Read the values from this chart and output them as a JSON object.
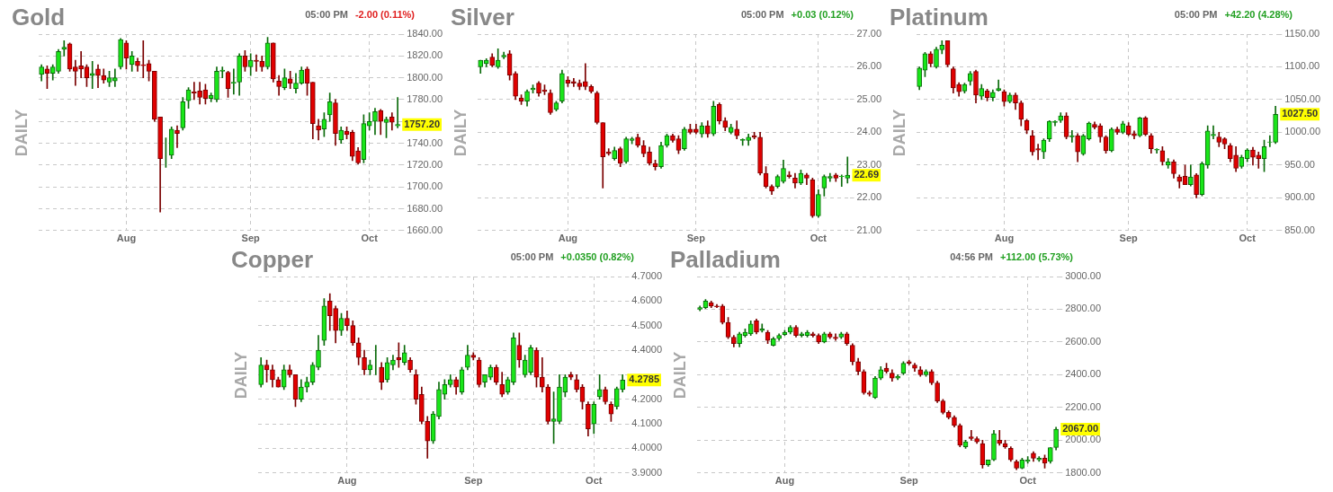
{
  "chart_data": [
    {
      "type": "candlestick",
      "title": "Gold",
      "subtitle": "05:00 PM",
      "ylabel": "DAILY",
      "grid": true,
      "categories": [
        null,
        null,
        null,
        null,
        null,
        null,
        null,
        null,
        null,
        null,
        null,
        null,
        null,
        null,
        null,
        "Aug",
        null,
        null,
        null,
        null,
        null,
        null,
        null,
        null,
        null,
        null,
        null,
        null,
        null,
        null,
        null,
        null,
        null,
        null,
        null,
        null,
        null,
        "Sep",
        null,
        null,
        null,
        null,
        null,
        null,
        null,
        null,
        null,
        null,
        null,
        null,
        null,
        null,
        null,
        null,
        null,
        null,
        null,
        null,
        "Oct",
        null,
        null,
        null,
        null,
        null
      ],
      "ohlc": [
        [
          1803,
          1812,
          1797,
          1810
        ],
        [
          1808,
          1811,
          1790,
          1804
        ],
        [
          1804,
          1812,
          1798,
          1810
        ],
        [
          1806,
          1826,
          1804,
          1824
        ],
        [
          1826,
          1834,
          1820,
          1828
        ],
        [
          1831,
          1832,
          1806,
          1808
        ],
        [
          1810,
          1816,
          1793,
          1806
        ],
        [
          1811,
          1824,
          1800,
          1808
        ],
        [
          1810,
          1812,
          1792,
          1800
        ],
        [
          1802,
          1815,
          1790,
          1804
        ],
        [
          1808,
          1812,
          1791,
          1802
        ],
        [
          1802,
          1808,
          1795,
          1798
        ],
        [
          1796,
          1806,
          1792,
          1800
        ],
        [
          1797,
          1808,
          1792,
          1800
        ],
        [
          1810,
          1836,
          1808,
          1835
        ],
        [
          1832,
          1834,
          1808,
          1818
        ],
        [
          1812,
          1824,
          1806,
          1820
        ],
        [
          1815,
          1818,
          1806,
          1811
        ],
        [
          1812,
          1834,
          1800,
          1811
        ],
        [
          1813,
          1816,
          1797,
          1806
        ],
        [
          1806,
          1806,
          1760,
          1762
        ],
        [
          1764,
          1764,
          1677,
          1726
        ],
        [
          1731,
          1745,
          1718,
          1731
        ],
        [
          1729,
          1755,
          1726,
          1753
        ],
        [
          1752,
          1756,
          1736,
          1749
        ],
        [
          1754,
          1782,
          1752,
          1778
        ],
        [
          1779,
          1791,
          1772,
          1789
        ],
        [
          1787,
          1796,
          1780,
          1786
        ],
        [
          1788,
          1796,
          1776,
          1782
        ],
        [
          1789,
          1794,
          1776,
          1781
        ],
        [
          1781,
          1786,
          1778,
          1784
        ],
        [
          1780,
          1810,
          1778,
          1806
        ],
        [
          1806,
          1810,
          1800,
          1807
        ],
        [
          1805,
          1806,
          1782,
          1790
        ],
        [
          1795,
          1808,
          1785,
          1796
        ],
        [
          1796,
          1822,
          1784,
          1820
        ],
        [
          1820,
          1825,
          1806,
          1810
        ],
        [
          1810,
          1822,
          1802,
          1816
        ],
        [
          1816,
          1821,
          1806,
          1815
        ],
        [
          1815,
          1820,
          1806,
          1810
        ],
        [
          1810,
          1837,
          1808,
          1832
        ],
        [
          1832,
          1832,
          1796,
          1799
        ],
        [
          1797,
          1802,
          1784,
          1792
        ],
        [
          1791,
          1808,
          1789,
          1800
        ],
        [
          1799,
          1806,
          1790,
          1795
        ],
        [
          1790,
          1804,
          1786,
          1795
        ],
        [
          1795,
          1810,
          1794,
          1807
        ],
        [
          1808,
          1810,
          1784,
          1795
        ],
        [
          1796,
          1796,
          1744,
          1758
        ],
        [
          1756,
          1762,
          1743,
          1752
        ],
        [
          1753,
          1768,
          1746,
          1762
        ],
        [
          1766,
          1786,
          1760,
          1778
        ],
        [
          1777,
          1780,
          1738,
          1749
        ],
        [
          1743,
          1755,
          1740,
          1752
        ],
        [
          1751,
          1755,
          1744,
          1748
        ],
        [
          1750,
          1752,
          1724,
          1728
        ],
        [
          1733,
          1736,
          1721,
          1722
        ],
        [
          1725,
          1766,
          1722,
          1758
        ],
        [
          1756,
          1768,
          1752,
          1760
        ],
        [
          1760,
          1772,
          1748,
          1769
        ],
        [
          1770,
          1771,
          1748,
          1760
        ],
        [
          1759,
          1764,
          1745,
          1762
        ],
        [
          1764,
          1768,
          1752,
          1759.2
        ],
        [
          1756,
          1782,
          1754,
          1757.2
        ]
      ],
      "ylim": [
        1660,
        1840
      ],
      "yticks": [
        {
          "value": 1660,
          "label": "1660.00"
        },
        {
          "value": 1680,
          "label": "1680.00"
        },
        {
          "value": 1700,
          "label": "1700.00"
        },
        {
          "value": 1720,
          "label": "1720.00"
        },
        {
          "value": 1740,
          "label": "1740.00"
        },
        {
          "value": 1760,
          "label": null
        },
        {
          "value": 1780,
          "label": "1780.00"
        },
        {
          "value": 1800,
          "label": "1800.00"
        },
        {
          "value": 1820,
          "label": "1820.00"
        },
        {
          "value": 1840,
          "label": "1840.00"
        }
      ],
      "annotations": [
        "-2.00 (0.11%)",
        {
          "text": "1757.20",
          "y": 1757.2
        }
      ]
    },
    {
      "type": "candlestick",
      "title": "Silver",
      "subtitle": "05:00 PM",
      "ylabel": "DAILY",
      "grid": true,
      "categories": [
        null,
        null,
        null,
        null,
        null,
        null,
        null,
        null,
        null,
        null,
        null,
        null,
        null,
        null,
        null,
        "Aug",
        null,
        null,
        null,
        null,
        null,
        null,
        null,
        null,
        null,
        null,
        null,
        null,
        null,
        null,
        null,
        null,
        null,
        null,
        null,
        null,
        null,
        "Sep",
        null,
        null,
        null,
        null,
        null,
        null,
        null,
        null,
        null,
        null,
        null,
        null,
        null,
        null,
        null,
        null,
        null,
        null,
        null,
        null,
        "Oct",
        null,
        null,
        null,
        null,
        null
      ],
      "ohlc": [
        [
          26.0,
          26.2,
          25.8,
          26.2
        ],
        [
          26.1,
          26.25,
          26.0,
          26.2
        ],
        [
          26.3,
          26.4,
          26.0,
          26.05
        ],
        [
          26.0,
          26.55,
          25.95,
          26.2
        ],
        [
          26.3,
          26.45,
          26.25,
          26.35
        ],
        [
          26.4,
          26.5,
          25.6,
          25.75
        ],
        [
          25.8,
          25.85,
          25.0,
          25.1
        ],
        [
          25.05,
          25.15,
          24.85,
          24.95
        ],
        [
          24.95,
          25.3,
          24.8,
          25.25
        ],
        [
          25.3,
          25.45,
          25.2,
          25.35
        ],
        [
          25.5,
          25.55,
          25.1,
          25.2
        ],
        [
          25.3,
          25.45,
          25.15,
          25.25
        ],
        [
          25.2,
          25.3,
          24.55,
          24.6
        ],
        [
          24.7,
          24.95,
          24.65,
          24.9
        ],
        [
          24.95,
          25.9,
          24.9,
          25.8
        ],
        [
          25.6,
          25.7,
          25.4,
          25.5
        ],
        [
          25.55,
          25.65,
          25.4,
          25.5
        ],
        [
          25.5,
          25.6,
          25.3,
          25.4
        ],
        [
          25.55,
          26.1,
          25.3,
          25.4
        ],
        [
          25.4,
          25.45,
          25.2,
          25.25
        ],
        [
          25.2,
          25.25,
          24.25,
          24.3
        ],
        [
          24.3,
          24.3,
          22.3,
          23.25
        ],
        [
          23.4,
          23.5,
          23.3,
          23.35
        ],
        [
          23.2,
          23.55,
          23.15,
          23.45
        ],
        [
          23.5,
          23.55,
          22.95,
          23.05
        ],
        [
          23.1,
          23.85,
          23.05,
          23.8
        ],
        [
          23.75,
          23.85,
          23.65,
          23.8
        ],
        [
          23.85,
          23.95,
          23.55,
          23.6
        ],
        [
          23.6,
          23.75,
          23.25,
          23.35
        ],
        [
          23.4,
          23.55,
          23.0,
          23.05
        ],
        [
          23.05,
          23.15,
          22.85,
          22.95
        ],
        [
          22.95,
          23.7,
          22.9,
          23.6
        ],
        [
          23.6,
          23.95,
          23.55,
          23.9
        ],
        [
          23.9,
          23.95,
          23.7,
          23.75
        ],
        [
          23.8,
          23.9,
          23.35,
          23.45
        ],
        [
          23.5,
          24.15,
          23.45,
          24.1
        ],
        [
          24.1,
          24.25,
          23.95,
          24.0
        ],
        [
          24.1,
          24.25,
          23.95,
          24.0
        ],
        [
          23.95,
          24.3,
          23.85,
          24.2
        ],
        [
          24.2,
          24.35,
          23.85,
          23.95
        ],
        [
          23.95,
          24.95,
          23.9,
          24.8
        ],
        [
          24.85,
          24.9,
          24.25,
          24.35
        ],
        [
          24.35,
          24.45,
          24.05,
          24.15
        ],
        [
          24.0,
          24.25,
          23.95,
          24.15
        ],
        [
          24.1,
          24.35,
          23.8,
          23.9
        ],
        [
          23.75,
          23.8,
          23.6,
          23.78
        ],
        [
          23.75,
          23.95,
          23.6,
          23.85
        ],
        [
          23.9,
          24.0,
          23.8,
          23.85
        ],
        [
          23.85,
          24.0,
          22.7,
          22.75
        ],
        [
          22.75,
          22.95,
          22.3,
          22.35
        ],
        [
          22.35,
          22.4,
          22.1,
          22.2
        ],
        [
          22.35,
          22.7,
          22.3,
          22.65
        ],
        [
          22.5,
          23.15,
          22.45,
          22.9
        ],
        [
          22.7,
          22.8,
          22.6,
          22.65
        ],
        [
          22.6,
          22.75,
          22.3,
          22.45
        ],
        [
          22.45,
          22.85,
          22.4,
          22.75
        ],
        [
          22.7,
          22.75,
          22.4,
          22.6
        ],
        [
          22.55,
          22.6,
          21.4,
          21.45
        ],
        [
          21.45,
          22.25,
          21.4,
          22.1
        ],
        [
          22.3,
          22.7,
          22.05,
          22.65
        ],
        [
          22.6,
          22.75,
          22.5,
          22.65
        ],
        [
          22.7,
          22.75,
          22.5,
          22.6
        ],
        [
          22.65,
          22.7,
          22.35,
          22.66
        ],
        [
          22.6,
          23.25,
          22.45,
          22.69
        ]
      ],
      "ylim": [
        21,
        27
      ],
      "yticks": [
        {
          "value": 21,
          "label": "21.00"
        },
        {
          "value": 22,
          "label": "22.00"
        },
        {
          "value": 23,
          "label": "23.00"
        },
        {
          "value": 24,
          "label": "24.00"
        },
        {
          "value": 25,
          "label": "25.00"
        },
        {
          "value": 26,
          "label": "26.00"
        },
        {
          "value": 27,
          "label": "27.00"
        }
      ],
      "annotations": [
        "+0.03 (0.12%)",
        {
          "text": "22.69",
          "y": 22.69
        }
      ]
    },
    {
      "type": "candlestick",
      "title": "Platinum",
      "subtitle": "05:00 PM",
      "ylabel": "DAILY",
      "grid": true,
      "categories": [
        null,
        null,
        null,
        null,
        null,
        null,
        null,
        null,
        null,
        null,
        null,
        null,
        null,
        null,
        null,
        "Aug",
        null,
        null,
        null,
        null,
        null,
        null,
        null,
        null,
        null,
        null,
        null,
        null,
        null,
        null,
        null,
        null,
        null,
        null,
        null,
        null,
        null,
        "Sep",
        null,
        null,
        null,
        null,
        null,
        null,
        null,
        null,
        null,
        null,
        null,
        null,
        null,
        null,
        null,
        null,
        null,
        null,
        null,
        null,
        "Oct",
        null,
        null,
        null,
        null,
        null
      ],
      "ohlc": [
        [
          1070,
          1100,
          1065,
          1098
        ],
        [
          1095,
          1122,
          1085,
          1120
        ],
        [
          1120,
          1123,
          1100,
          1105
        ],
        [
          1100,
          1130,
          1098,
          1127
        ],
        [
          1126,
          1140,
          1120,
          1133
        ],
        [
          1140,
          1140,
          1100,
          1103
        ],
        [
          1097,
          1100,
          1060,
          1068
        ],
        [
          1073,
          1076,
          1055,
          1062
        ],
        [
          1063,
          1075,
          1060,
          1073
        ],
        [
          1078,
          1093,
          1072,
          1090
        ],
        [
          1093,
          1095,
          1045,
          1057
        ],
        [
          1055,
          1073,
          1050,
          1067
        ],
        [
          1063,
          1066,
          1048,
          1053
        ],
        [
          1053,
          1065,
          1048,
          1061
        ],
        [
          1064,
          1080,
          1063,
          1067
        ],
        [
          1062,
          1065,
          1040,
          1047
        ],
        [
          1047,
          1060,
          1045,
          1057
        ],
        [
          1057,
          1060,
          1035,
          1045
        ],
        [
          1045,
          1048,
          1010,
          1020
        ],
        [
          1018,
          1020,
          998,
          1003
        ],
        [
          995,
          1003,
          965,
          970
        ],
        [
          975,
          982,
          958,
          973
        ],
        [
          970,
          990,
          960,
          988
        ],
        [
          990,
          1018,
          986,
          1017
        ],
        [
          1015,
          1018,
          1010,
          1017
        ],
        [
          1018,
          1030,
          1015,
          1025
        ],
        [
          1025,
          1030,
          990,
          993
        ],
        [
          993,
          1003,
          985,
          995
        ],
        [
          995,
          998,
          955,
          970
        ],
        [
          967,
          997,
          965,
          995
        ],
        [
          990,
          1016,
          988,
          1014
        ],
        [
          1012,
          1016,
          1005,
          1008
        ],
        [
          1010,
          1013,
          985,
          993
        ],
        [
          993,
          995,
          968,
          972
        ],
        [
          972,
          1007,
          970,
          1005
        ],
        [
          1005,
          1008,
          997,
          1000
        ],
        [
          1000,
          1017,
          998,
          1013
        ],
        [
          1010,
          1015,
          995,
          997
        ],
        [
          998,
          1002,
          990,
          995
        ],
        [
          995,
          1023,
          993,
          1022
        ],
        [
          1022,
          1024,
          995,
          997
        ],
        [
          995,
          998,
          968,
          975
        ],
        [
          973,
          975,
          968,
          974
        ],
        [
          972,
          978,
          950,
          955
        ],
        [
          950,
          960,
          945,
          955
        ],
        [
          955,
          958,
          930,
          937
        ],
        [
          932,
          935,
          915,
          925
        ],
        [
          933,
          950,
          920,
          920
        ],
        [
          920,
          950,
          918,
          932
        ],
        [
          935,
          937,
          900,
          905
        ],
        [
          905,
          955,
          903,
          952
        ],
        [
          950,
          1010,
          945,
          1002
        ],
        [
          995,
          1010,
          990,
          997
        ],
        [
          993,
          1000,
          978,
          985
        ],
        [
          990,
          992,
          975,
          982
        ],
        [
          980,
          983,
          955,
          960
        ],
        [
          965,
          978,
          940,
          945
        ],
        [
          948,
          965,
          945,
          962
        ],
        [
          960,
          975,
          955,
          973
        ],
        [
          973,
          977,
          950,
          962
        ],
        [
          965,
          970,
          945,
          960
        ],
        [
          960,
          988,
          940,
          978
        ],
        [
          985,
          995,
          978,
          985.3
        ],
        [
          985,
          1040,
          983,
          1027.5
        ]
      ],
      "ylim": [
        850,
        1150
      ],
      "yticks": [
        {
          "value": 850,
          "label": "850.00"
        },
        {
          "value": 900,
          "label": "900.00"
        },
        {
          "value": 950,
          "label": "950.00"
        },
        {
          "value": 1000,
          "label": "1000.00"
        },
        {
          "value": 1050,
          "label": "1050.00"
        },
        {
          "value": 1100,
          "label": "1100.00"
        },
        {
          "value": 1150,
          "label": "1150.00"
        }
      ],
      "annotations": [
        "+42.20 (4.28%)",
        {
          "text": "1027.50",
          "y": 1027.5
        }
      ]
    },
    {
      "type": "candlestick",
      "title": "Copper",
      "subtitle": "05:00 PM",
      "ylabel": "DAILY",
      "grid": true,
      "categories": [
        null,
        null,
        null,
        null,
        null,
        null,
        null,
        null,
        null,
        null,
        null,
        null,
        null,
        null,
        null,
        "Aug",
        null,
        null,
        null,
        null,
        null,
        null,
        null,
        null,
        null,
        null,
        null,
        null,
        null,
        null,
        null,
        null,
        null,
        null,
        null,
        null,
        null,
        "Sep",
        null,
        null,
        null,
        null,
        null,
        null,
        null,
        null,
        null,
        null,
        null,
        null,
        null,
        null,
        null,
        null,
        null,
        null,
        null,
        null,
        "Oct",
        null,
        null,
        null,
        null,
        null
      ],
      "ohlc": [
        [
          4.26,
          4.37,
          4.25,
          4.34
        ],
        [
          4.34,
          4.36,
          4.27,
          4.32
        ],
        [
          4.32,
          4.34,
          4.25,
          4.28
        ],
        [
          4.28,
          4.29,
          4.25,
          4.25
        ],
        [
          4.25,
          4.34,
          4.24,
          4.32
        ],
        [
          4.32,
          4.34,
          4.29,
          4.3
        ],
        [
          4.3,
          4.3,
          4.17,
          4.2
        ],
        [
          4.2,
          4.28,
          4.19,
          4.25
        ],
        [
          4.25,
          4.29,
          4.23,
          4.27
        ],
        [
          4.27,
          4.35,
          4.26,
          4.34
        ],
        [
          4.33,
          4.46,
          4.32,
          4.4
        ],
        [
          4.44,
          4.61,
          4.42,
          4.58
        ],
        [
          4.6,
          4.63,
          4.48,
          4.54
        ],
        [
          4.57,
          4.58,
          4.43,
          4.48
        ],
        [
          4.48,
          4.55,
          4.46,
          4.53
        ],
        [
          4.53,
          4.56,
          4.48,
          4.5
        ],
        [
          4.5,
          4.52,
          4.42,
          4.43
        ],
        [
          4.43,
          4.45,
          4.34,
          4.37
        ],
        [
          4.37,
          4.4,
          4.3,
          4.32
        ],
        [
          4.32,
          4.36,
          4.3,
          4.34
        ],
        [
          4.34,
          4.42,
          4.3,
          4.34
        ],
        [
          4.33,
          4.35,
          4.24,
          4.27
        ],
        [
          4.28,
          4.37,
          4.27,
          4.35
        ],
        [
          4.34,
          4.38,
          4.32,
          4.36
        ],
        [
          4.37,
          4.43,
          4.33,
          4.36
        ],
        [
          4.35,
          4.42,
          4.34,
          4.39
        ],
        [
          4.36,
          4.37,
          4.31,
          4.32
        ],
        [
          4.3,
          4.32,
          4.18,
          4.2
        ],
        [
          4.22,
          4.25,
          4.1,
          4.11
        ],
        [
          4.11,
          4.13,
          3.96,
          4.03
        ],
        [
          4.03,
          4.15,
          4.02,
          4.14
        ],
        [
          4.13,
          4.27,
          4.12,
          4.24
        ],
        [
          4.22,
          4.28,
          4.2,
          4.26
        ],
        [
          4.26,
          4.3,
          4.25,
          4.28
        ],
        [
          4.28,
          4.29,
          4.22,
          4.25
        ],
        [
          4.23,
          4.33,
          4.22,
          4.32
        ],
        [
          4.33,
          4.42,
          4.32,
          4.38
        ],
        [
          4.38,
          4.39,
          4.36,
          4.37
        ],
        [
          4.36,
          4.37,
          4.25,
          4.26
        ],
        [
          4.27,
          4.3,
          4.25,
          4.3
        ],
        [
          4.29,
          4.34,
          4.28,
          4.33
        ],
        [
          4.33,
          4.34,
          4.26,
          4.27
        ],
        [
          4.26,
          4.31,
          4.21,
          4.22
        ],
        [
          4.23,
          4.29,
          4.22,
          4.28
        ],
        [
          4.27,
          4.47,
          4.26,
          4.45
        ],
        [
          4.42,
          4.47,
          4.33,
          4.36
        ],
        [
          4.3,
          4.38,
          4.29,
          4.36
        ],
        [
          4.31,
          4.42,
          4.3,
          4.41
        ],
        [
          4.4,
          4.41,
          4.25,
          4.29
        ],
        [
          4.29,
          4.37,
          4.23,
          4.25
        ],
        [
          4.25,
          4.26,
          4.1,
          4.11
        ],
        [
          4.11,
          4.23,
          4.02,
          4.12
        ],
        [
          4.11,
          4.3,
          4.1,
          4.25
        ],
        [
          4.23,
          4.3,
          4.21,
          4.29
        ],
        [
          4.3,
          4.31,
          4.28,
          4.29
        ],
        [
          4.28,
          4.3,
          4.23,
          4.24
        ],
        [
          4.25,
          4.26,
          4.16,
          4.19
        ],
        [
          4.18,
          4.19,
          4.05,
          4.08
        ],
        [
          4.1,
          4.19,
          4.06,
          4.18
        ],
        [
          4.21,
          4.3,
          4.2,
          4.24
        ],
        [
          4.24,
          4.25,
          4.18,
          4.19
        ],
        [
          4.18,
          4.19,
          4.11,
          4.14
        ],
        [
          4.17,
          4.25,
          4.16,
          4.2435
        ],
        [
          4.24,
          4.3,
          4.23,
          4.2785
        ]
      ],
      "ylim": [
        3.9,
        4.7
      ],
      "yticks": [
        {
          "value": 3.9,
          "label": "3.9000"
        },
        {
          "value": 4.0,
          "label": "4.0000"
        },
        {
          "value": 4.1,
          "label": "4.1000"
        },
        {
          "value": 4.2,
          "label": "4.2000"
        },
        {
          "value": 4.3,
          "label": null
        },
        {
          "value": 4.4,
          "label": "4.4000"
        },
        {
          "value": 4.5,
          "label": "4.5000"
        },
        {
          "value": 4.6,
          "label": "4.6000"
        },
        {
          "value": 4.7,
          "label": "4.7000"
        }
      ],
      "annotations": [
        "+0.0350 (0.82%)",
        {
          "text": "4.2785",
          "y": 4.2785
        }
      ]
    },
    {
      "type": "candlestick",
      "title": "Palladium",
      "subtitle": "04:56 PM",
      "ylabel": "DAILY",
      "grid": true,
      "categories": [
        null,
        null,
        null,
        null,
        null,
        null,
        null,
        null,
        null,
        null,
        null,
        null,
        null,
        null,
        null,
        "Aug",
        null,
        null,
        null,
        null,
        null,
        null,
        null,
        null,
        null,
        null,
        null,
        null,
        null,
        null,
        null,
        null,
        null,
        null,
        null,
        null,
        null,
        "Sep",
        null,
        null,
        null,
        null,
        null,
        null,
        null,
        null,
        null,
        null,
        null,
        null,
        null,
        null,
        null,
        null,
        null,
        null,
        null,
        null,
        "Oct",
        null,
        null,
        null,
        null,
        null
      ],
      "ohlc": [
        [
          2800,
          2820,
          2790,
          2810
        ],
        [
          2810,
          2860,
          2805,
          2850
        ],
        [
          2840,
          2850,
          2810,
          2820
        ],
        [
          2820,
          2830,
          2810,
          2815
        ],
        [
          2820,
          2830,
          2710,
          2720
        ],
        [
          2720,
          2750,
          2620,
          2630
        ],
        [
          2630,
          2640,
          2570,
          2590
        ],
        [
          2590,
          2660,
          2570,
          2650
        ],
        [
          2640,
          2680,
          2630,
          2660
        ],
        [
          2650,
          2730,
          2640,
          2710
        ],
        [
          2730,
          2740,
          2650,
          2660
        ],
        [
          2670,
          2710,
          2660,
          2680
        ],
        [
          2660,
          2670,
          2590,
          2610
        ],
        [
          2580,
          2630,
          2575,
          2620
        ],
        [
          2620,
          2650,
          2610,
          2640
        ],
        [
          2645,
          2670,
          2640,
          2660
        ],
        [
          2660,
          2700,
          2650,
          2690
        ],
        [
          2690,
          2700,
          2630,
          2640
        ],
        [
          2640,
          2660,
          2630,
          2650
        ],
        [
          2640,
          2670,
          2630,
          2660
        ],
        [
          2650,
          2660,
          2630,
          2640
        ],
        [
          2640,
          2650,
          2590,
          2600
        ],
        [
          2600,
          2660,
          2595,
          2650
        ],
        [
          2650,
          2660,
          2620,
          2630
        ],
        [
          2630,
          2650,
          2610,
          2620
        ],
        [
          2630,
          2660,
          2620,
          2650
        ],
        [
          2650,
          2660,
          2580,
          2590
        ],
        [
          2580,
          2590,
          2460,
          2480
        ],
        [
          2480,
          2500,
          2400,
          2420
        ],
        [
          2420,
          2430,
          2280,
          2290
        ],
        [
          2290,
          2300,
          2270,
          2280
        ],
        [
          2260,
          2390,
          2255,
          2380
        ],
        [
          2380,
          2450,
          2370,
          2430
        ],
        [
          2440,
          2470,
          2410,
          2420
        ],
        [
          2410,
          2430,
          2360,
          2380
        ],
        [
          2380,
          2400,
          2370,
          2390
        ],
        [
          2410,
          2480,
          2400,
          2470
        ],
        [
          2480,
          2490,
          2460,
          2470
        ],
        [
          2460,
          2470,
          2420,
          2440
        ],
        [
          2430,
          2450,
          2390,
          2400
        ],
        [
          2400,
          2430,
          2390,
          2420
        ],
        [
          2420,
          2430,
          2340,
          2350
        ],
        [
          2350,
          2360,
          2230,
          2240
        ],
        [
          2240,
          2250,
          2160,
          2170
        ],
        [
          2170,
          2180,
          2130,
          2140
        ],
        [
          2140,
          2150,
          2080,
          2090
        ],
        [
          2090,
          2100,
          1960,
          1970
        ],
        [
          1960,
          2000,
          1950,
          1990
        ],
        [
          2020,
          2060,
          2000,
          2010
        ],
        [
          2010,
          2020,
          1980,
          1990
        ],
        [
          1980,
          2000,
          1830,
          1850
        ],
        [
          1850,
          1880,
          1840,
          1880
        ],
        [
          1880,
          2060,
          1875,
          2040
        ],
        [
          2000,
          2060,
          1970,
          1980
        ],
        [
          1980,
          2000,
          1950,
          1960
        ],
        [
          1950,
          1960,
          1870,
          1880
        ],
        [
          1870,
          1880,
          1820,
          1830
        ],
        [
          1830,
          1890,
          1825,
          1880
        ],
        [
          1870,
          1900,
          1860,
          1880
        ],
        [
          1920,
          1930,
          1870,
          1890
        ],
        [
          1880,
          1900,
          1870,
          1890
        ],
        [
          1890,
          1910,
          1830,
          1860
        ],
        [
          1870,
          1955,
          1860,
          1955
        ],
        [
          1955,
          2080,
          1940,
          2067
        ]
      ],
      "ylim": [
        1800,
        3000
      ],
      "yticks": [
        {
          "value": 1800,
          "label": "1800.00"
        },
        {
          "value": 2000,
          "label": "2000.00"
        },
        {
          "value": 2200,
          "label": "2200.00"
        },
        {
          "value": 2400,
          "label": "2400.00"
        },
        {
          "value": 2600,
          "label": "2600.00"
        },
        {
          "value": 2800,
          "label": "2800.00"
        },
        {
          "value": 3000,
          "label": "3000.00"
        }
      ],
      "annotations": [
        "+112.00 (5.73%)",
        {
          "text": "2067.00",
          "y": 2067
        }
      ]
    }
  ]
}
